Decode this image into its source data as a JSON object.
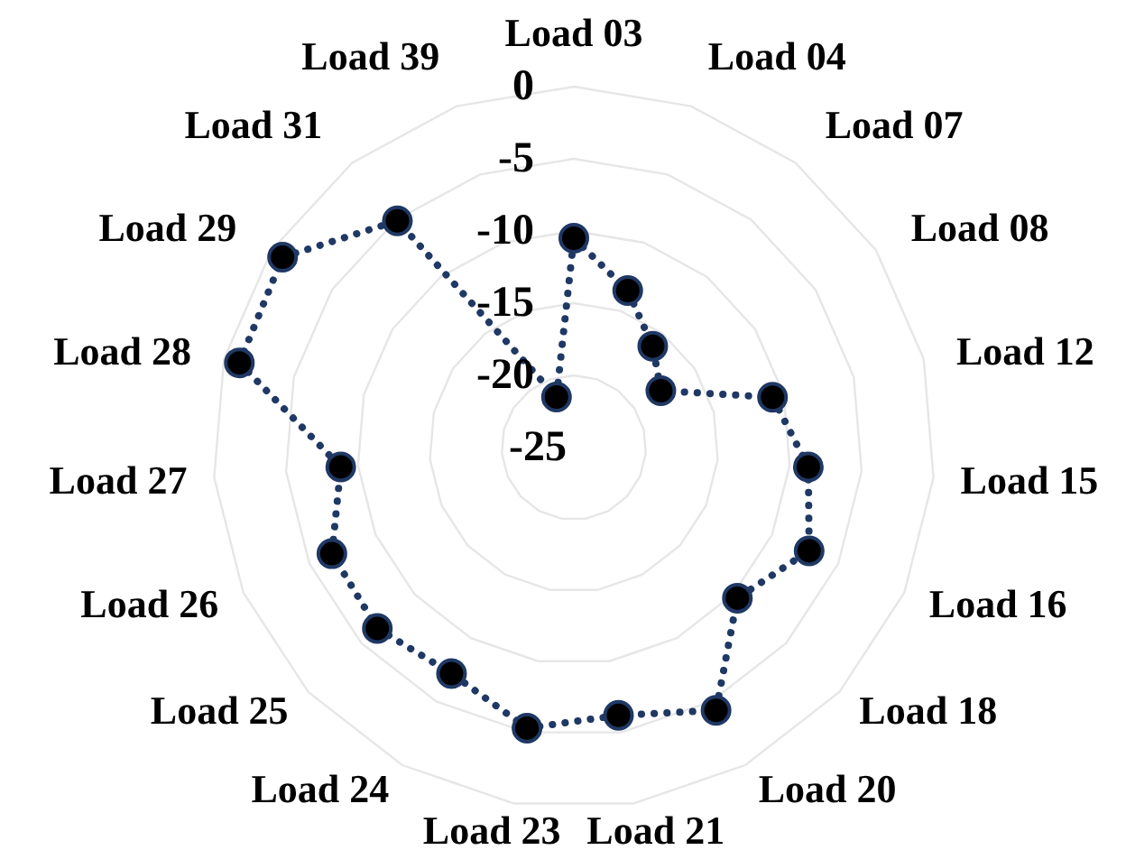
{
  "chart_data": {
    "type": "radar",
    "categories": [
      "Load 03",
      "Load 04",
      "Load 07",
      "Load 08",
      "Load 12",
      "Load 15",
      "Load 16",
      "Load 18",
      "Load 20",
      "Load 21",
      "Load 23",
      "Load 24",
      "Load 25",
      "Load 26",
      "Load 27",
      "Load 28",
      "Load 29",
      "Load 31",
      "Load 39"
    ],
    "series": [
      {
        "color": "#1f3864",
        "values": [
          -10.5,
          -13.5,
          -16.1,
          -17.8,
          -10.8,
          -8.7,
          -7.2,
          -9.6,
          -4.3,
          -6.2,
          -5.3,
          -7.2,
          -6.5,
          -6.7,
          -8.8,
          -1.1,
          -0.9,
          -5.1,
          -21.3
        ]
      }
    ],
    "ylim": [
      -25,
      0
    ],
    "yticks": [
      0,
      -5,
      -10,
      -15,
      -20,
      -25
    ],
    "grid": true,
    "marker": "circle",
    "line_style": "dotted"
  }
}
